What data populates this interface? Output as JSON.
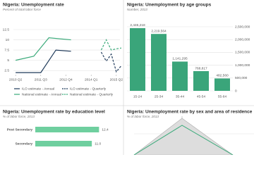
{
  "chart_data": [
    {
      "type": "line",
      "title": "Nigeria: Unemployment rate",
      "subtitle": "Percent of total labor force",
      "xlim": [
        2010.0,
        2015.5
      ],
      "xticks": [
        {
          "value": 2010.25,
          "label": "2010 Q2"
        },
        {
          "value": 2011.5,
          "label": "2011 Q3"
        },
        {
          "value": 2012.75,
          "label": "2012 Q4"
        },
        {
          "value": 2014.0,
          "label": "2014 Q1"
        },
        {
          "value": 2015.25,
          "label": "2015 Q2"
        }
      ],
      "ylim": [
        1.5,
        12.5
      ],
      "yticks": [
        2.5,
        5,
        7.5,
        10,
        12.5
      ],
      "grid": true,
      "series": [
        {
          "name": "ILO estimate - Annual",
          "color": "#1f3a5a",
          "style": "solid",
          "x": [
            2010.25,
            2011.5,
            2012.25,
            2013.0
          ],
          "values": [
            2.0,
            2.0,
            7.5,
            7.2
          ]
        },
        {
          "name": "ILO estimate - Quarterly",
          "color": "#1f3a5a",
          "style": "dashed",
          "x": [
            2014.5,
            2014.75,
            2015.0,
            2015.25,
            2015.5
          ],
          "values": [
            7.0,
            4.8,
            6.5,
            2.2,
            3.7
          ]
        },
        {
          "name": "National estimate - Annual",
          "color": "#3aaa7a",
          "style": "solid",
          "x": [
            2010.25,
            2011.15,
            2011.9,
            2013.0
          ],
          "values": [
            5.0,
            6.0,
            10.5,
            10.0
          ]
        },
        {
          "name": "National estimate - Quarterly",
          "color": "#3aaa7a",
          "style": "dashed",
          "x": [
            2014.5,
            2014.75,
            2015.0,
            2015.25,
            2015.5
          ],
          "values": [
            7.5,
            10.0,
            7.5,
            7.8,
            8.0
          ]
        }
      ]
    },
    {
      "type": "bar",
      "title": "Nigeria: Unemployment by age groups",
      "subtitle": "Number, 2013",
      "categories": [
        "15-24",
        "25-34",
        "35-44",
        "45-54",
        "55-64"
      ],
      "values": [
        2446218,
        2219564,
        1141295,
        768817,
        482560
      ],
      "value_labels": [
        "2,446,218",
        "2,219,564",
        "1,141,295",
        "768,817",
        "482,560"
      ],
      "color": "#3aa57a",
      "ylim": [
        0,
        2500000
      ],
      "yticks": [
        0,
        {
          "value": 500000,
          "label": "500,000"
        },
        {
          "value": 1000000,
          "label": "1,000,000"
        },
        {
          "value": 1500000,
          "label": "1,500,000"
        },
        {
          "value": 2000000,
          "label": "2,000,000"
        },
        {
          "value": 2500000,
          "label": "2,500,000"
        }
      ],
      "grid": true
    },
    {
      "type": "barh",
      "title": "Nigeria: Unemployment rate by education level",
      "subtitle": "% of labor force, 2013",
      "categories": [
        "Post Secondary",
        "Secondary"
      ],
      "values": [
        12.4,
        11.0
      ],
      "value_labels": [
        "12.4",
        "11.0"
      ],
      "color": "#6fcf9f",
      "xlim": [
        0,
        14
      ]
    },
    {
      "type": "area",
      "title": "Nigeria: Unemployment rate by sex and area of residence",
      "subtitle": "% of labor force, 2013"
    }
  ]
}
